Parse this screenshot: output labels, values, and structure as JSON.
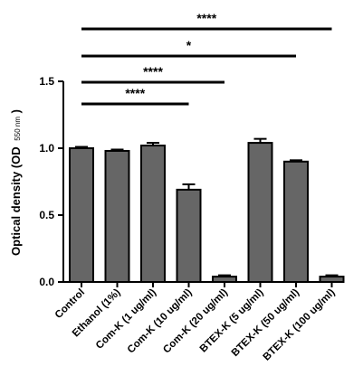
{
  "chart_data": {
    "type": "bar",
    "ylabel_main": "Optical density (OD",
    "ylabel_sub": "550 nm",
    "ylabel_close": ")",
    "ylim": [
      0,
      1.5
    ],
    "yticks": [
      "0.0",
      "0.5",
      "1.0",
      "1.5"
    ],
    "ytick_values": [
      0,
      0.5,
      1.0,
      1.5
    ],
    "categories": [
      "Control",
      "Ethanol (1%)",
      "Com-K (1 ug/ml)",
      "Com-K (10 ug/ml)",
      "Com-K (20 ug/ml)",
      "BTEX-K (5 ug/ml)",
      "BTEX-K (50 ug/ml)",
      "BTEX-K (100 ug/ml)"
    ],
    "values": [
      1.0,
      0.98,
      1.02,
      0.69,
      0.04,
      1.04,
      0.9,
      0.04
    ],
    "errors": [
      0.01,
      0.01,
      0.02,
      0.04,
      0.01,
      0.03,
      0.01,
      0.01
    ],
    "bar_color": "#666666",
    "significance": [
      {
        "from": 0,
        "to": 7,
        "label": "****"
      },
      {
        "from": 0,
        "to": 6,
        "label": "*"
      },
      {
        "from": 0,
        "to": 4,
        "label": "****"
      },
      {
        "from": 0,
        "to": 3,
        "label": "****"
      }
    ],
    "grid": false,
    "legend": "none"
  }
}
